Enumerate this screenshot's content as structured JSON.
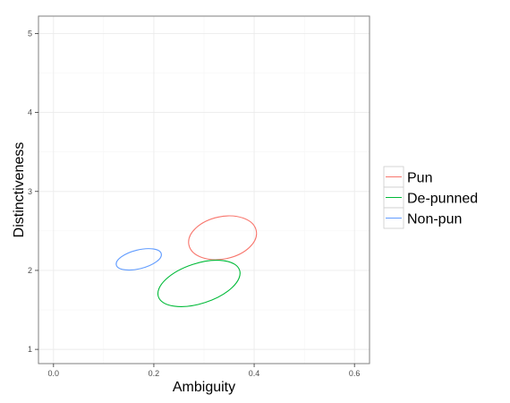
{
  "chart_data": {
    "type": "scatter",
    "geom": "confidence-ellipse",
    "xlabel": "Ambiguity",
    "ylabel": "Distinctiveness",
    "xlim": [
      -0.03,
      0.63
    ],
    "ylim": [
      0.82,
      5.22
    ],
    "x_ticks": [
      "0.0",
      "0.2",
      "0.4",
      "0.6"
    ],
    "x_tick_values": [
      0.0,
      0.2,
      0.4,
      0.6
    ],
    "y_ticks": [
      "1",
      "2",
      "3",
      "4",
      "5"
    ],
    "y_tick_values": [
      1,
      2,
      3,
      4,
      5
    ],
    "grid": true,
    "legend_position": "right",
    "series": [
      {
        "name": "Pun",
        "color": "#f8766d",
        "center": {
          "x": 0.337,
          "y": 2.413
        },
        "extent_x": [
          0.264,
          0.41
        ],
        "extent_y": [
          2.13,
          2.7
        ]
      },
      {
        "name": "De-punned",
        "color": "#00ba38",
        "center": {
          "x": 0.29,
          "y": 1.835
        },
        "extent_x": [
          0.19,
          0.388
        ],
        "extent_y": [
          1.55,
          2.14
        ]
      },
      {
        "name": "Non-pun",
        "color": "#619cff",
        "center": {
          "x": 0.17,
          "y": 2.14
        },
        "extent_x": [
          0.117,
          0.222
        ],
        "extent_y": [
          1.98,
          2.25
        ]
      }
    ]
  }
}
